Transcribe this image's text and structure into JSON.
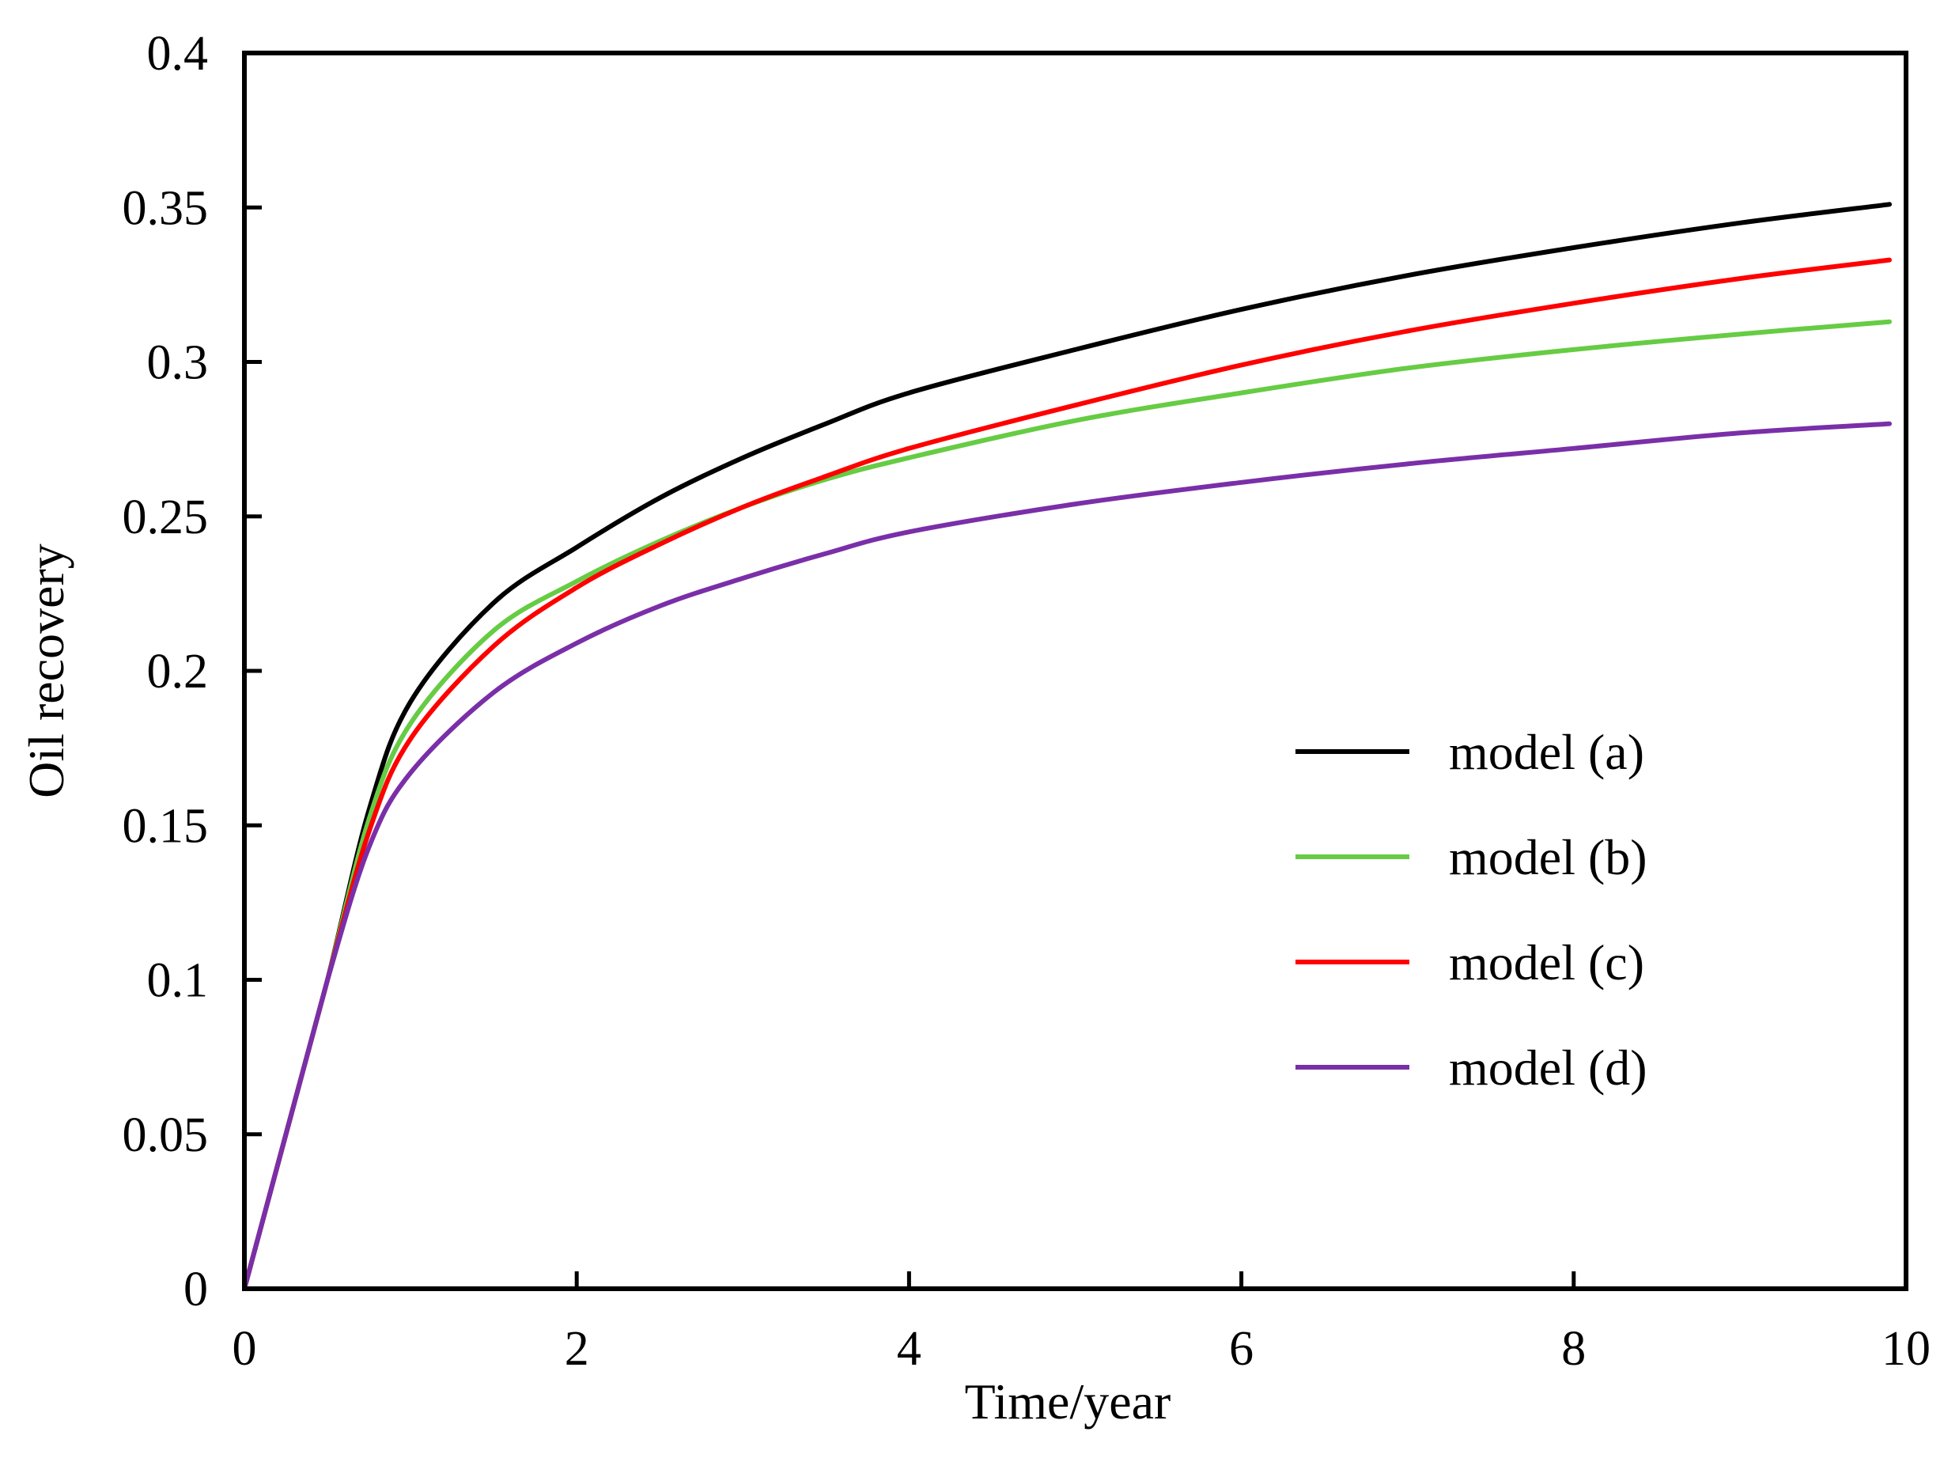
{
  "chart_data": {
    "type": "line",
    "title": "",
    "xlabel": "Time/year",
    "ylabel": "Oil recovery",
    "xlim": [
      0,
      10
    ],
    "ylim": [
      0,
      0.4
    ],
    "xticks": [
      0,
      2,
      4,
      6,
      8,
      10
    ],
    "xtick_labels": [
      "0",
      "2",
      "4",
      "6",
      "8",
      "10"
    ],
    "yticks": [
      0,
      0.05,
      0.1,
      0.15,
      0.2,
      0.25,
      0.3,
      0.35,
      0.4
    ],
    "ytick_labels": [
      "0",
      "0.05",
      "0.1",
      "0.15",
      "0.2",
      "0.25",
      "0.3",
      "0.35",
      "0.4"
    ],
    "grid": false,
    "legend_position": "right",
    "x": [
      0,
      0.25,
      0.5,
      0.75,
      1,
      1.5,
      2,
      2.5,
      3,
      3.5,
      4,
      5,
      6,
      7,
      8,
      9,
      9.9
    ],
    "series": [
      {
        "name": "model (a)",
        "color": "#000000",
        "values": [
          0,
          0.05,
          0.1,
          0.155,
          0.19,
          0.222,
          0.24,
          0.256,
          0.269,
          0.28,
          0.29,
          0.304,
          0.317,
          0.328,
          0.337,
          0.345,
          0.351
        ]
      },
      {
        "name": "model (b)",
        "color": "#66cc44",
        "values": [
          0,
          0.05,
          0.1,
          0.152,
          0.183,
          0.213,
          0.229,
          0.242,
          0.253,
          0.262,
          0.269,
          0.281,
          0.29,
          0.298,
          0.304,
          0.309,
          0.313
        ]
      },
      {
        "name": "model (c)",
        "color": "#ff0000",
        "values": [
          0,
          0.05,
          0.1,
          0.148,
          0.178,
          0.208,
          0.227,
          0.241,
          0.253,
          0.263,
          0.272,
          0.286,
          0.299,
          0.31,
          0.319,
          0.327,
          0.333
        ]
      },
      {
        "name": "model (d)",
        "color": "#7a2fa8",
        "values": [
          0,
          0.05,
          0.1,
          0.143,
          0.167,
          0.193,
          0.209,
          0.221,
          0.23,
          0.238,
          0.245,
          0.254,
          0.261,
          0.267,
          0.272,
          0.277,
          0.28
        ]
      }
    ]
  }
}
